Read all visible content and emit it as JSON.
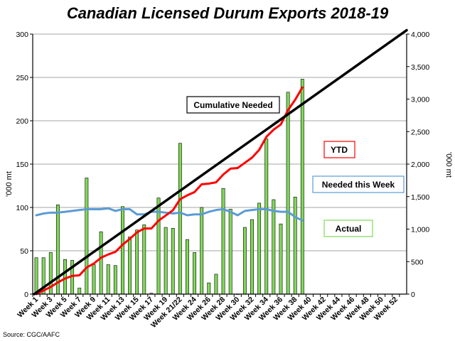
{
  "chart_data": {
    "type": "bar",
    "title": "Canadian Licensed Durum Exports 2018-19",
    "ylabel_left": "'000 mt",
    "ylabel_right": "'000 mt",
    "source": "Source: CGC/AAFC",
    "ylim_left": [
      0,
      300
    ],
    "ylim_right": [
      0,
      4000
    ],
    "yticks_left": [
      0,
      50,
      100,
      150,
      200,
      250,
      300
    ],
    "yticks_right": [
      "0",
      "500",
      "1,000",
      "1,500",
      "2,000",
      "2,500",
      "3,000",
      "3,500",
      "4,000"
    ],
    "yticks_right_values": [
      0,
      500,
      1000,
      1500,
      2000,
      2500,
      3000,
      3500,
      4000
    ],
    "grid": "horizontal",
    "num_weeks": 52,
    "week_positions": [
      1,
      2,
      3,
      4,
      5,
      6,
      7,
      8,
      9,
      10,
      11,
      12,
      13,
      14,
      15,
      16,
      17,
      18,
      19,
      20,
      21,
      22,
      23,
      24,
      25,
      26,
      27,
      28,
      29,
      30,
      31,
      32,
      33,
      34,
      35,
      36,
      37,
      38,
      39,
      40,
      41,
      42,
      43,
      44,
      45,
      46,
      47,
      48,
      49,
      50,
      51,
      52
    ],
    "x_tick_labels": [
      {
        "pos": 1,
        "label": "Week 1"
      },
      {
        "pos": 3,
        "label": "Week 3"
      },
      {
        "pos": 5,
        "label": "Week 5"
      },
      {
        "pos": 7,
        "label": "Week 7"
      },
      {
        "pos": 9,
        "label": "Week 9"
      },
      {
        "pos": 11,
        "label": "Week 11"
      },
      {
        "pos": 13,
        "label": "Week 13"
      },
      {
        "pos": 15,
        "label": "Week 15"
      },
      {
        "pos": 17,
        "label": "Week 17"
      },
      {
        "pos": 19,
        "label": "Week 19"
      },
      {
        "pos": 21,
        "label": "Week 21/22"
      },
      {
        "pos": 23,
        "label": "Week 24"
      },
      {
        "pos": 25,
        "label": "Week 26"
      },
      {
        "pos": 27,
        "label": "Week 28"
      },
      {
        "pos": 29,
        "label": "Week 30"
      },
      {
        "pos": 31,
        "label": "Week 32"
      },
      {
        "pos": 33,
        "label": "Week 34"
      },
      {
        "pos": 35,
        "label": "Week 36"
      },
      {
        "pos": 37,
        "label": "Week 38"
      },
      {
        "pos": 39,
        "label": "Week 40"
      },
      {
        "pos": 41,
        "label": "Week 42"
      },
      {
        "pos": 43,
        "label": "Week 44"
      },
      {
        "pos": 45,
        "label": "Week 46"
      },
      {
        "pos": 47,
        "label": "Week 48"
      },
      {
        "pos": 49,
        "label": "Week 50"
      },
      {
        "pos": 51,
        "label": "Week 52"
      }
    ],
    "series": [
      {
        "name": "Actual",
        "type": "bar",
        "axis": "left",
        "color": "#7ed957",
        "values": [
          42,
          42,
          48,
          103,
          40,
          39,
          7,
          134,
          34,
          72,
          34,
          33,
          101,
          66,
          74,
          80,
          1,
          111,
          77,
          76,
          174,
          63,
          48,
          100,
          13,
          23,
          122,
          98,
          0,
          77,
          86,
          105,
          179,
          109,
          81,
          233,
          112,
          248
        ]
      },
      {
        "name": "YTD",
        "type": "line",
        "axis": "right",
        "color": "#ff0000",
        "values": [
          0,
          55,
          110,
          180,
          240,
          280,
          290,
          410,
          470,
          560,
          610,
          650,
          760,
          850,
          950,
          1010,
          1010,
          1130,
          1210,
          1290,
          1460,
          1520,
          1570,
          1690,
          1700,
          1720,
          1840,
          1930,
          1940,
          2020,
          2100,
          2220,
          2420,
          2530,
          2610,
          2830,
          2990,
          3180
        ]
      },
      {
        "name": "Needed this Week",
        "type": "line",
        "axis": "left",
        "color": "#5b9bd5",
        "values": [
          91,
          93,
          94,
          94,
          95,
          96,
          97,
          98,
          98,
          98,
          99,
          96,
          98,
          98,
          92,
          92,
          95,
          95,
          94,
          93,
          94,
          91,
          92,
          92,
          95,
          97,
          98,
          95,
          91,
          96,
          97,
          98,
          98,
          96,
          95,
          95,
          89,
          85
        ]
      },
      {
        "name": "Cumulative Needed",
        "type": "line",
        "axis": "right",
        "color": "#000000",
        "from_week": 1,
        "to_week": 52,
        "values": [
          0,
          4060
        ]
      }
    ],
    "legend": [
      {
        "label": "Cumulative Needed",
        "color": "#000000"
      },
      {
        "label": "YTD",
        "color": "#ff0000"
      },
      {
        "label": "Needed this Week",
        "color": "#5b9bd5"
      },
      {
        "label": "Actual",
        "color": "#7ed957"
      }
    ]
  }
}
